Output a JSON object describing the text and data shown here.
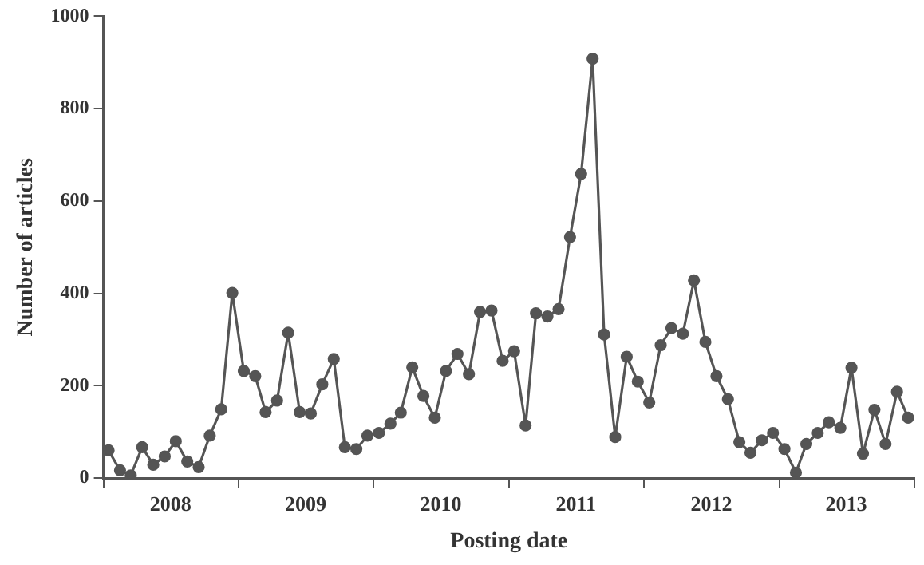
{
  "chart_data": {
    "type": "line",
    "xlabel": "Posting date",
    "ylabel": "Number of articles",
    "x": [
      "2008-01-15",
      "2008-02-15",
      "2008-03-15",
      "2008-04-15",
      "2008-05-15",
      "2008-06-15",
      "2008-07-15",
      "2008-08-15",
      "2008-09-15",
      "2008-10-15",
      "2008-11-15",
      "2008-12-15",
      "2009-01-15",
      "2009-02-15",
      "2009-03-15",
      "2009-04-15",
      "2009-05-15",
      "2009-06-15",
      "2009-07-15",
      "2009-08-15",
      "2009-09-15",
      "2009-10-15",
      "2009-11-15",
      "2009-12-15",
      "2010-01-15",
      "2010-02-15",
      "2010-03-15",
      "2010-04-15",
      "2010-05-15",
      "2010-06-15",
      "2010-07-15",
      "2010-08-15",
      "2010-09-15",
      "2010-10-15",
      "2010-11-15",
      "2010-12-15",
      "2011-01-15",
      "2011-02-15",
      "2011-03-15",
      "2011-04-15",
      "2011-05-15",
      "2011-06-15",
      "2011-07-15",
      "2011-08-15",
      "2011-09-15",
      "2011-10-15",
      "2011-11-15",
      "2011-12-15",
      "2012-01-15",
      "2012-02-15",
      "2012-03-15",
      "2012-04-15",
      "2012-05-15",
      "2012-06-15",
      "2012-07-15",
      "2012-08-15",
      "2012-09-15",
      "2012-10-15",
      "2012-11-15",
      "2012-12-15",
      "2013-01-15",
      "2013-02-15",
      "2013-03-15",
      "2013-04-15",
      "2013-05-15",
      "2013-06-15",
      "2013-07-15",
      "2013-08-15",
      "2013-09-15",
      "2013-10-15",
      "2013-11-15",
      "2013-12-15"
    ],
    "series": [
      {
        "color": "#555555",
        "values": [
          60,
          17,
          6,
          67,
          29,
          47,
          80,
          36,
          24,
          92,
          149,
          401,
          232,
          221,
          143,
          168,
          315,
          143,
          140,
          203,
          258,
          67,
          63,
          92,
          98,
          118,
          142,
          240,
          178,
          131,
          232,
          269,
          225,
          360,
          363,
          254,
          275,
          114,
          357,
          350,
          366,
          522,
          659,
          908,
          311,
          89,
          263,
          209,
          164,
          288,
          325,
          313,
          428,
          295,
          221,
          171,
          78,
          55,
          82,
          98,
          63,
          12,
          74,
          98,
          121,
          109,
          239,
          53,
          148,
          74,
          187,
          131
        ]
      }
    ],
    "xlim": [
      "2008-01-01",
      "2014-01-01"
    ],
    "xticks": [
      {
        "value": "2008-01-01",
        "label": null
      },
      {
        "value": "2008-07-01",
        "label": "2008"
      },
      {
        "value": "2009-01-01",
        "label": null
      },
      {
        "value": "2009-07-01",
        "label": "2009"
      },
      {
        "value": "2010-01-01",
        "label": null
      },
      {
        "value": "2010-07-01",
        "label": "2010"
      },
      {
        "value": "2011-01-01",
        "label": null
      },
      {
        "value": "2011-07-01",
        "label": "2011"
      },
      {
        "value": "2012-01-01",
        "label": null
      },
      {
        "value": "2012-07-01",
        "label": "2012"
      },
      {
        "value": "2013-01-01",
        "label": null
      },
      {
        "value": "2013-07-01",
        "label": "2013"
      },
      {
        "value": "2014-01-01",
        "label": null
      }
    ],
    "ylim": [
      0,
      1000
    ],
    "yticks": [
      0,
      200,
      400,
      600,
      800,
      1000
    ],
    "marker": "circle",
    "legend": false
  }
}
